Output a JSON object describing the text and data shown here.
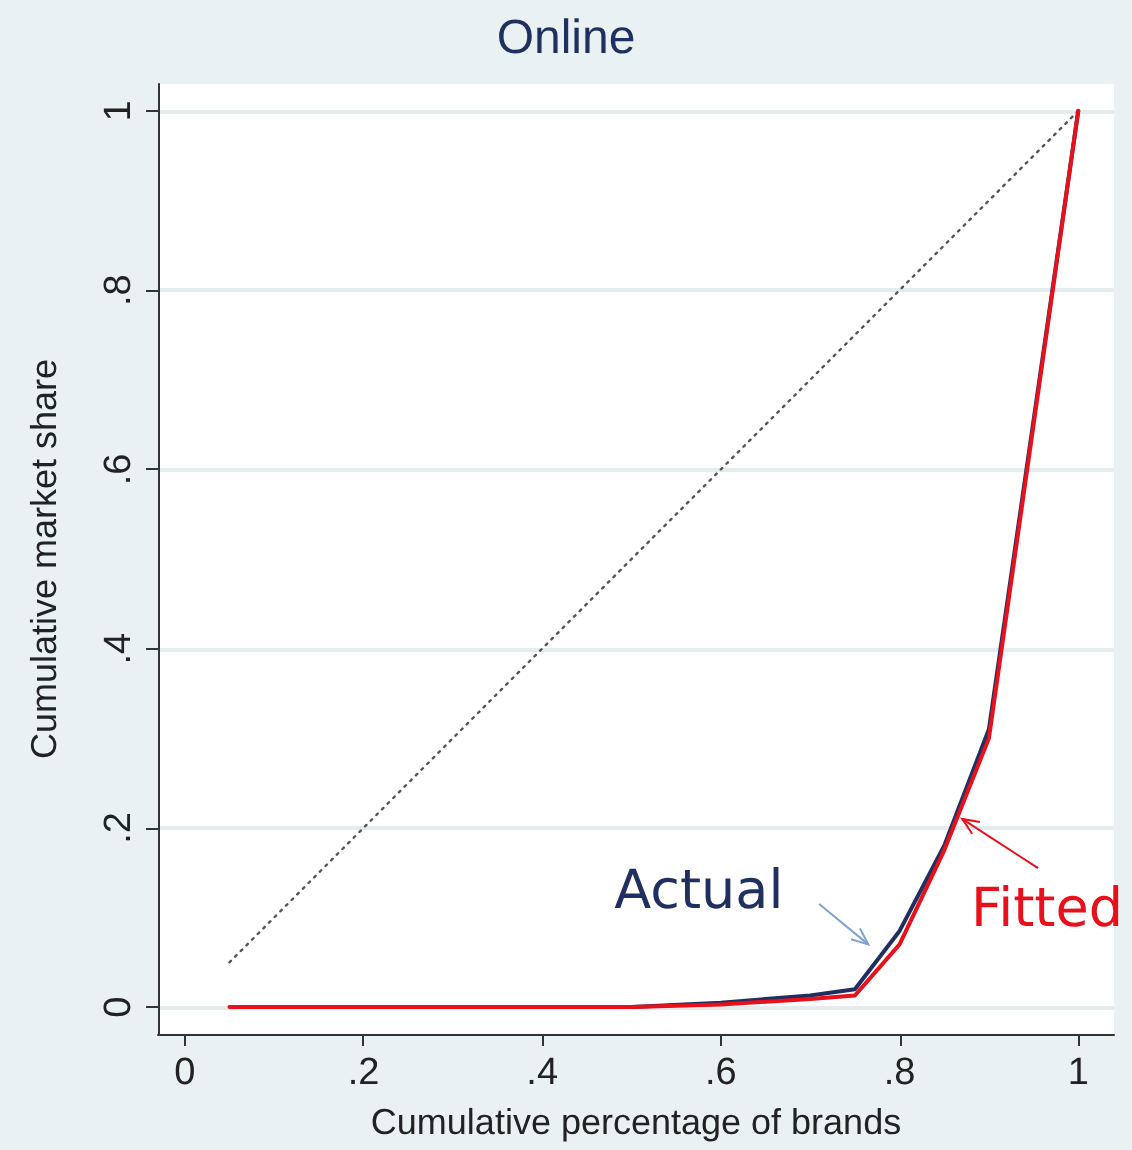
{
  "chart_data": {
    "type": "line",
    "title": "Online",
    "xlabel": "Cumulative percentage of brands",
    "ylabel": "Cumulative market share",
    "xlim": [
      -0.03,
      1.04
    ],
    "ylim": [
      -0.03,
      1.03
    ],
    "xticks": [
      0,
      {
        "value": 0.2,
        "label": ".2"
      },
      {
        "value": 0.4,
        "label": ".4"
      },
      {
        "value": 0.6,
        "label": ".6"
      },
      {
        "value": 0.8,
        "label": ".8"
      },
      1
    ],
    "yticks": [
      0,
      {
        "value": 0.2,
        "label": ".2"
      },
      {
        "value": 0.4,
        "label": ".4"
      },
      {
        "value": 0.6,
        "label": ".6"
      },
      {
        "value": 0.8,
        "label": ".8"
      },
      1
    ],
    "grid": "y",
    "legend": false,
    "marker": "none",
    "series": [
      {
        "color": "#555555",
        "line_style": "dotted",
        "x": [
          0.05,
          1
        ],
        "values": [
          0.05,
          1
        ]
      },
      {
        "name": "Actual",
        "color": "#1f2f5f",
        "x": [
          0.4,
          0.5,
          0.6,
          0.7,
          0.75,
          0.8,
          0.85,
          0.9,
          1
        ],
        "values": [
          0,
          0,
          0.005,
          0.013,
          0.02,
          0.085,
          0.18,
          0.31,
          1
        ]
      },
      {
        "name": "Fitted",
        "color": "#e8101a",
        "x": [
          0.05,
          0.1,
          0.2,
          0.3,
          0.4,
          0.5,
          0.6,
          0.7,
          0.75,
          0.8,
          0.85,
          0.9,
          1
        ],
        "values": [
          0,
          0,
          0,
          0,
          0,
          0,
          0.003,
          0.009,
          0.013,
          0.07,
          0.175,
          0.3,
          1
        ]
      }
    ]
  }
}
